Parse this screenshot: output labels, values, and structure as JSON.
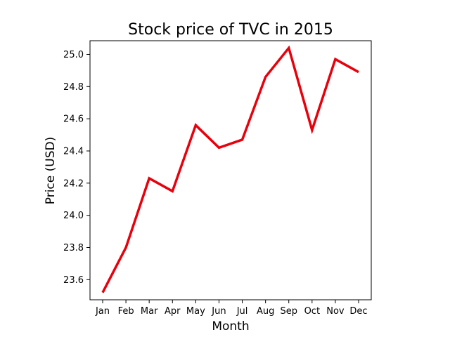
{
  "chart_data": {
    "type": "line",
    "title": "Stock price of TVC in 2015",
    "xlabel": "Month",
    "ylabel": "Price (USD)",
    "categories": [
      "Jan",
      "Feb",
      "Mar",
      "Apr",
      "May",
      "Jun",
      "Jul",
      "Aug",
      "Sep",
      "Oct",
      "Nov",
      "Dec"
    ],
    "series": [
      {
        "values": [
          23.52,
          23.8,
          24.23,
          24.15,
          24.56,
          24.42,
          24.47,
          24.86,
          25.04,
          24.53,
          24.97,
          24.89
        ],
        "color": "#e8000b"
      }
    ],
    "ylim": [
      23.475,
      25.085
    ],
    "yticks": [
      23.6,
      23.8,
      24.0,
      24.2,
      24.4,
      24.6,
      24.8,
      25.0
    ],
    "ytick_labels": [
      "23.6",
      "23.8",
      "24.0",
      "24.2",
      "24.4",
      "24.6",
      "24.8",
      "25.0"
    ],
    "grid": false,
    "legend": "none"
  }
}
